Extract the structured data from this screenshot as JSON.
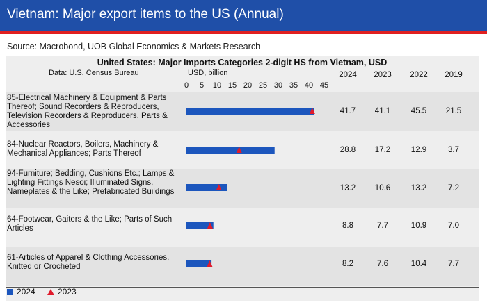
{
  "header": {
    "title": "Vietnam: Major export items to the US (Annual)"
  },
  "source": "Source: Macrobond, UOB Global Economics & Markets Research",
  "chart_data": {
    "type": "bar",
    "title": "United States: Major Imports Categories 2-digit HS from Vietnam, USD",
    "data_note": "Data: U.S. Census Bureau",
    "unit_label": "USD, billion",
    "xlim": [
      0,
      45
    ],
    "x_ticks": [
      "0",
      "5",
      "10",
      "15",
      "20",
      "25",
      "30",
      "35",
      "40",
      "45"
    ],
    "year_columns": [
      "2024",
      "2023",
      "2022",
      "2019"
    ],
    "categories": [
      "85-Electrical Machinery & Equipment & Parts Thereof; Sound Recorders & Reproducers, Television Recorders & Reproducers, Parts & Accessories",
      "84-Nuclear Reactors, Boilers, Machinery & Mechanical Appliances; Parts Thereof",
      "94-Furniture; Bedding, Cushions Etc.; Lamps & Lighting Fittings Nesoi; Illuminated Signs, Nameplates & the Like; Prefabricated Buildings",
      "64-Footwear, Gaiters & the Like; Parts of Such Articles",
      "61-Articles of Apparel & Clothing Accessories, Knitted or Crocheted"
    ],
    "series": [
      {
        "name": "2024",
        "values": [
          41.7,
          28.8,
          13.2,
          8.8,
          8.2
        ],
        "color": "#1c56bd",
        "marker": "bar"
      },
      {
        "name": "2023",
        "values": [
          41.1,
          17.2,
          10.6,
          7.7,
          7.6
        ],
        "color": "#e01b2c",
        "marker": "triangle"
      }
    ],
    "table": [
      [
        "41.7",
        "41.1",
        "45.5",
        "21.5"
      ],
      [
        "28.8",
        "17.2",
        "12.9",
        "3.7"
      ],
      [
        "13.2",
        "10.6",
        "13.2",
        "7.2"
      ],
      [
        "8.8",
        "7.7",
        "10.9",
        "7.0"
      ],
      [
        "8.2",
        "7.6",
        "10.4",
        "7.7"
      ]
    ],
    "legend": [
      {
        "label": "2024",
        "symbol": "square"
      },
      {
        "label": "2023",
        "symbol": "triangle"
      }
    ],
    "legend_position": "bottom-left",
    "grid": false
  }
}
